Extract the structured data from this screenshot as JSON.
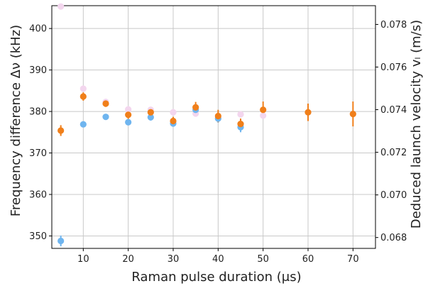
{
  "chart_data": {
    "type": "scatter",
    "xlabel": "Raman pulse duration (μs)",
    "ylabel_left": "Frequency difference Δν (kHz)",
    "ylabel_right": "Deduced launch velocity vₗ (m/s)",
    "xlim": [
      3,
      75
    ],
    "ylim_left": [
      347,
      405.5
    ],
    "ylim_right": [
      0.06749,
      0.07888
    ],
    "x_ticks": [
      10,
      20,
      30,
      40,
      50,
      60,
      70
    ],
    "y_ticks_left": [
      350,
      360,
      370,
      380,
      390,
      400
    ],
    "y_ticks_right": [
      0.068,
      0.07,
      0.072,
      0.074,
      0.076,
      0.078
    ],
    "grid": true,
    "series": [
      {
        "color": "#f3d6ee",
        "points": [
          {
            "x": 5,
            "y": 405.3
          },
          {
            "x": 10,
            "y": 385.5
          },
          {
            "x": 15,
            "y": 382.3
          },
          {
            "x": 20,
            "y": 380.5
          },
          {
            "x": 25,
            "y": 380.4
          },
          {
            "x": 30,
            "y": 379.8
          },
          {
            "x": 35,
            "y": 379.5
          },
          {
            "x": 40,
            "y": 378.5
          },
          {
            "x": 45,
            "y": 379.3
          },
          {
            "x": 50,
            "y": 379.0
          }
        ]
      },
      {
        "color": "#6fb5ef",
        "points": [
          {
            "x": 5,
            "y": 348.8,
            "err": 1.3
          },
          {
            "x": 10,
            "y": 376.9,
            "err": 0.5
          },
          {
            "x": 15,
            "y": 378.7,
            "err": 0.7
          },
          {
            "x": 20,
            "y": 377.4,
            "err": 0.7
          },
          {
            "x": 25,
            "y": 378.6,
            "err": 0.8
          },
          {
            "x": 30,
            "y": 377.1,
            "err": 0.7
          },
          {
            "x": 35,
            "y": 380.4,
            "err": 1.0
          },
          {
            "x": 40,
            "y": 378.3,
            "err": 1.0
          },
          {
            "x": 45,
            "y": 376.2,
            "err": 1.2
          }
        ]
      },
      {
        "color": "#f07f1a",
        "points": [
          {
            "x": 5,
            "y": 375.4,
            "err": 1.3
          },
          {
            "x": 10,
            "y": 383.6,
            "err": 1.0
          },
          {
            "x": 15,
            "y": 381.9,
            "err": 0.8
          },
          {
            "x": 20,
            "y": 379.2,
            "err": 1.0
          },
          {
            "x": 25,
            "y": 379.8,
            "err": 1.0
          },
          {
            "x": 30,
            "y": 377.7,
            "err": 1.0
          },
          {
            "x": 35,
            "y": 381.0,
            "err": 1.3
          },
          {
            "x": 40,
            "y": 378.9,
            "err": 1.5
          },
          {
            "x": 45,
            "y": 377.0,
            "err": 1.3
          },
          {
            "x": 50,
            "y": 380.4,
            "err": 2.0
          },
          {
            "x": 60,
            "y": 379.8,
            "err": 2.1
          },
          {
            "x": 70,
            "y": 379.4,
            "err": 3.0
          }
        ]
      }
    ]
  }
}
